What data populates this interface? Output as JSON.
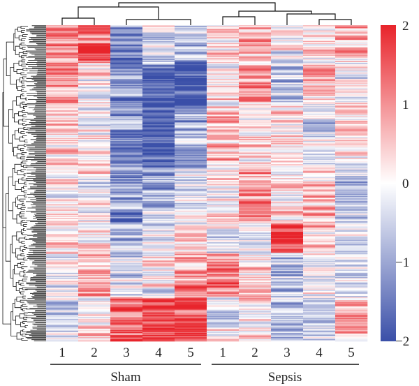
{
  "chart_data": {
    "type": "heatmap",
    "title": "",
    "xlabel": "",
    "ylabel": "",
    "columns": [
      "1",
      "2",
      "3",
      "4",
      "5",
      "1",
      "2",
      "3",
      "4",
      "5"
    ],
    "groups": [
      {
        "name": "Sham",
        "columns": [
          0,
          1,
          2,
          3,
          4
        ]
      },
      {
        "name": "Sepsis",
        "columns": [
          5,
          6,
          7,
          8,
          9
        ]
      }
    ],
    "colorbar": {
      "min": -2,
      "max": 2,
      "ticks": [
        "2",
        "1",
        "0",
        "−1",
        "−2"
      ],
      "colors": {
        "low": "#3a4fa8",
        "mid": "#ffffff",
        "high": "#e8242b"
      }
    },
    "row_count": 300,
    "row_dendrogram": true,
    "column_dendrogram": true,
    "approx_row_band_means": [
      {
        "rows_fraction": [
          0.0,
          0.12
        ],
        "means": [
          0.9,
          1.4,
          -1.6,
          -0.6,
          -0.8,
          0.4,
          0.6,
          -0.2,
          0.1,
          0.4
        ]
      },
      {
        "rows_fraction": [
          0.12,
          0.25
        ],
        "means": [
          1.0,
          0.2,
          -1.2,
          -1.8,
          -1.8,
          0.3,
          0.8,
          -0.6,
          0.4,
          -0.2
        ]
      },
      {
        "rows_fraction": [
          0.25,
          0.45
        ],
        "means": [
          0.3,
          0.1,
          -1.2,
          -1.9,
          -1.0,
          0.5,
          0.3,
          0.1,
          -0.4,
          0.3
        ]
      },
      {
        "rows_fraction": [
          0.45,
          0.62
        ],
        "means": [
          0.2,
          -0.1,
          -0.9,
          -0.8,
          -0.3,
          0.2,
          0.9,
          0.3,
          0.4,
          -0.5
        ]
      },
      {
        "rows_fraction": [
          0.62,
          0.72
        ],
        "means": [
          0.3,
          0.4,
          -0.6,
          -0.3,
          0.2,
          -0.4,
          0.1,
          1.5,
          0.4,
          -0.6
        ]
      },
      {
        "rows_fraction": [
          0.72,
          0.86
        ],
        "means": [
          -0.3,
          0.6,
          -0.4,
          0.1,
          0.8,
          1.2,
          0.3,
          -0.8,
          -0.3,
          -0.2
        ]
      },
      {
        "rows_fraction": [
          0.86,
          1.0
        ],
        "means": [
          -0.4,
          0.1,
          1.6,
          1.8,
          1.8,
          -0.2,
          0.2,
          -0.8,
          -0.4,
          0.6
        ]
      }
    ]
  }
}
